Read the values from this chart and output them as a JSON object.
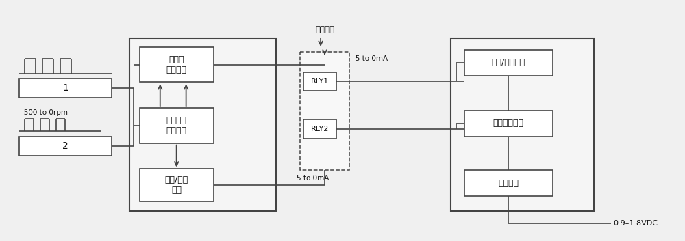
{
  "fig_bg": "#f0f0f0",
  "box_color": "#444444",
  "box_fill": "#ffffff",
  "text_color": "#111111",
  "sensor1_label": "1",
  "sensor2_label": "2",
  "rpm_label": "-500 to 0rpm",
  "block1_label": "正反转\n判断处理",
  "block2_label": "信号输入\n处理模块",
  "block3_label": "频率/电流\n转换",
  "block4_label": "电流/电压转换",
  "block5_label": "电压调制放大",
  "block6_label": "隔离输出",
  "rly1_label": "RLY1",
  "rly2_label": "RLY2",
  "label_fanzhuan": "反转信号",
  "label_neg5to0": "-5 to 0mA",
  "label_5to0": "5 to 0mA",
  "label_vdc": "0.9–1.8VDC"
}
